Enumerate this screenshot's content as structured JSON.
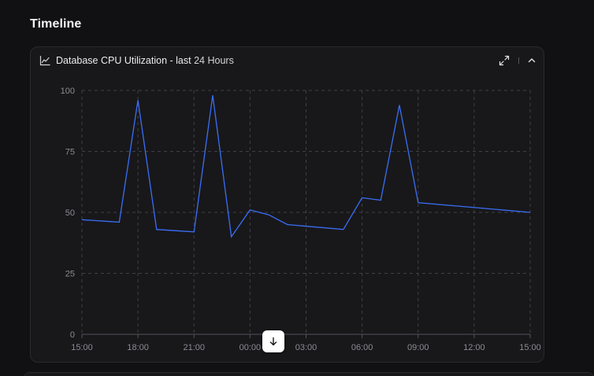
{
  "section": {
    "title": "Timeline"
  },
  "card": {
    "title": "Database CPU Utilization - last",
    "range": "24 Hours",
    "icons": {
      "chart": "line-chart-icon",
      "expand": "expand-icon",
      "collapse": "chevron-up-icon"
    }
  },
  "scroll_button": {
    "icon": "arrow-down-icon"
  },
  "chart_data": {
    "type": "line",
    "title": "Database CPU Utilization - last 24 Hours",
    "xlabel": "",
    "ylabel": "",
    "xlim": [
      0,
      24
    ],
    "ylim": [
      0,
      100
    ],
    "x_ticks": [
      0,
      3,
      6,
      9,
      12,
      15,
      18,
      21,
      24
    ],
    "x_tick_labels": [
      "15:00",
      "18:00",
      "21:00",
      "00:00",
      "03:00",
      "06:00",
      "09:00",
      "12:00",
      "15:00"
    ],
    "y_ticks": [
      0,
      25,
      50,
      75,
      100
    ],
    "y_tick_labels": [
      "0",
      "25",
      "50",
      "75",
      "100"
    ],
    "grid": true,
    "series": [
      {
        "color": "#3b6ef5",
        "x": [
          0,
          2,
          3,
          4,
          6,
          7,
          8,
          9,
          10,
          11,
          14,
          15,
          16,
          17,
          18,
          24
        ],
        "y": [
          47,
          46,
          96,
          43,
          42,
          98,
          40,
          51,
          49,
          45,
          43,
          56,
          55,
          94,
          54,
          50
        ]
      }
    ]
  },
  "colors": {
    "background": "#111113",
    "card": "#18181b",
    "grid": "#3f3f46",
    "line": "#3b6ef5",
    "tick_label": "#8b8b93",
    "text": "#f4f4f5"
  }
}
